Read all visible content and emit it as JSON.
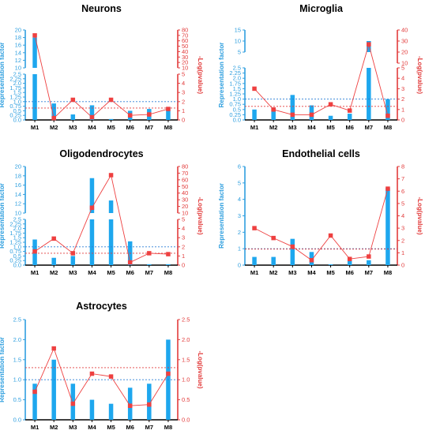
{
  "colors": {
    "bar": "#1ea7ee",
    "line": "#ee4040",
    "bar_axis": "#2f9fdf",
    "line_axis": "#e23c3c",
    "ref_blue": "#2a7fd6",
    "ref_red": "#e23c3c"
  },
  "chart_data": [
    {
      "type": "bar+line",
      "title": "Neurons",
      "ylabel": "Representation factor",
      "y2label": "-Log(pvalue)",
      "categories": [
        "M1",
        "M2",
        "M3",
        "M4",
        "M5",
        "M6",
        "M7",
        "M8"
      ],
      "y_axis": {
        "broken": true,
        "lower_range": [
          0,
          2.5
        ],
        "lower_ticks": [
          "0.0",
          "0.25",
          "0.5",
          "0.75",
          "1.0",
          "1.25",
          "1.5",
          "1.75",
          "2.0",
          "2.25",
          "2.5"
        ],
        "upper_range": [
          10,
          20
        ],
        "upper_ticks": [
          "10",
          "12",
          "14",
          "16",
          "18",
          "20"
        ]
      },
      "y2_axis": {
        "broken": true,
        "lower_range": [
          0,
          5
        ],
        "lower_ticks": [
          "0",
          "1",
          "2",
          "3",
          "4",
          "5"
        ],
        "upper_range": [
          10,
          80
        ],
        "upper_ticks": [
          "10",
          "20",
          "30",
          "40",
          "50",
          "60",
          "70",
          "80"
        ]
      },
      "bar_series": {
        "values": [
          18,
          0.9,
          0.3,
          0.8,
          0.05,
          0.5,
          0.6,
          0.7
        ]
      },
      "line_series": {
        "values": [
          70,
          0.2,
          2.2,
          0.3,
          2.2,
          0.5,
          0.6,
          1.2
        ]
      },
      "ref_lines": {
        "bar": 1.0,
        "line": 1.3
      }
    },
    {
      "type": "bar+line",
      "title": "Microglia",
      "ylabel": "Representation factor",
      "y2label": "-Log(pvalue)",
      "categories": [
        "M1",
        "M2",
        "M3",
        "M4",
        "M5",
        "M6",
        "M7",
        "M8"
      ],
      "y_axis": {
        "broken": true,
        "lower_range": [
          0,
          2.5
        ],
        "lower_ticks": [
          "0.0",
          "0.25",
          "0.5",
          "0.75",
          "1.0",
          "1.25",
          "1.5",
          "1.75",
          "2.0",
          "2.25",
          "2.5"
        ],
        "upper_range": [
          5,
          15
        ],
        "upper_ticks": [
          "5",
          "10",
          "15"
        ]
      },
      "y2_axis": {
        "broken": true,
        "lower_range": [
          0,
          5
        ],
        "lower_ticks": [
          "0",
          "1",
          "2",
          "3",
          "4",
          "5"
        ],
        "upper_range": [
          10,
          40
        ],
        "upper_ticks": [
          "10",
          "20",
          "30",
          "40"
        ]
      },
      "bar_series": {
        "values": [
          0.5,
          0.6,
          1.2,
          0.7,
          0.2,
          0.3,
          10,
          1.0
        ]
      },
      "line_series": {
        "values": [
          3.0,
          1.0,
          0.5,
          0.5,
          1.5,
          0.9,
          27,
          0.4
        ]
      },
      "ref_lines": {
        "bar": 1.0,
        "line": 1.3
      }
    },
    {
      "type": "bar+line",
      "title": "Oligodendrocytes",
      "ylabel": "Representation factor",
      "y2label": "-Log(pvalue)",
      "categories": [
        "M1",
        "M2",
        "M3",
        "M4",
        "M5",
        "M6",
        "M7",
        "M8"
      ],
      "y_axis": {
        "broken": true,
        "lower_range": [
          0,
          2.5
        ],
        "lower_ticks": [
          "0.0",
          "0.25",
          "0.5",
          "0.75",
          "1.0",
          "1.25",
          "1.5",
          "1.75",
          "2.0",
          "2.25",
          "2.5"
        ],
        "upper_range": [
          10,
          20
        ],
        "upper_ticks": [
          "10",
          "12",
          "14",
          "16",
          "18",
          "20"
        ]
      },
      "y2_axis": {
        "broken": true,
        "lower_range": [
          0,
          5
        ],
        "lower_ticks": [
          "0",
          "1",
          "2",
          "3",
          "4",
          "5"
        ],
        "upper_range": [
          10,
          80
        ],
        "upper_ticks": [
          "10",
          "20",
          "30",
          "40",
          "50",
          "60",
          "70",
          "80"
        ]
      },
      "bar_series": {
        "values": [
          1.4,
          0.4,
          0.5,
          17.5,
          12.7,
          1.3,
          0.05,
          0.05
        ]
      },
      "line_series": {
        "values": [
          1.5,
          2.9,
          1.3,
          18,
          67,
          0.3,
          1.3,
          1.2
        ]
      },
      "ref_lines": {
        "bar": 1.0,
        "line": 1.3
      }
    },
    {
      "type": "bar+line",
      "title": "Endothelial cells",
      "ylabel": "Representation factor",
      "y2label": "-Log(pvalue)",
      "categories": [
        "M1",
        "M2",
        "M3",
        "M4",
        "M5",
        "M6",
        "M7",
        "M8"
      ],
      "y_axis": {
        "range": [
          0,
          6
        ],
        "ticks": [
          "0",
          "1",
          "2",
          "3",
          "4",
          "5",
          "6"
        ]
      },
      "y2_axis": {
        "range": [
          0,
          8
        ],
        "ticks": [
          "0",
          "1",
          "2",
          "3",
          "4",
          "5",
          "6",
          "7",
          "8"
        ]
      },
      "bar_series": {
        "values": [
          0.5,
          0.5,
          1.6,
          0.8,
          0.05,
          0.3,
          0.3,
          4.7
        ]
      },
      "line_series": {
        "values": [
          3.0,
          2.2,
          1.5,
          0.4,
          2.4,
          0.5,
          0.7,
          6.2
        ]
      },
      "ref_lines": {
        "bar": 1.0,
        "line": 1.3
      }
    },
    {
      "type": "bar+line",
      "title": "Astrocytes",
      "ylabel": "Representation factor",
      "y2label": "-Log(pvalue)",
      "categories": [
        "M1",
        "M2",
        "M3",
        "M4",
        "M5",
        "M6",
        "M7",
        "M8"
      ],
      "y_axis": {
        "range": [
          0,
          2.5
        ],
        "ticks": [
          "0.0",
          "0.5",
          "1.0",
          "1.5",
          "2.0",
          "2.5"
        ]
      },
      "y2_axis": {
        "range": [
          0,
          2.5
        ],
        "ticks": [
          "0.0",
          "0.5",
          "1.0",
          "1.5",
          "2.0",
          "2.5"
        ]
      },
      "bar_series": {
        "values": [
          0.9,
          1.5,
          0.9,
          0.5,
          0.4,
          0.8,
          0.9,
          2.0
        ]
      },
      "line_series": {
        "values": [
          0.7,
          1.78,
          0.4,
          1.15,
          1.08,
          0.35,
          0.38,
          1.15
        ]
      },
      "ref_lines": {
        "bar": 1.0,
        "line": 1.3
      }
    }
  ]
}
